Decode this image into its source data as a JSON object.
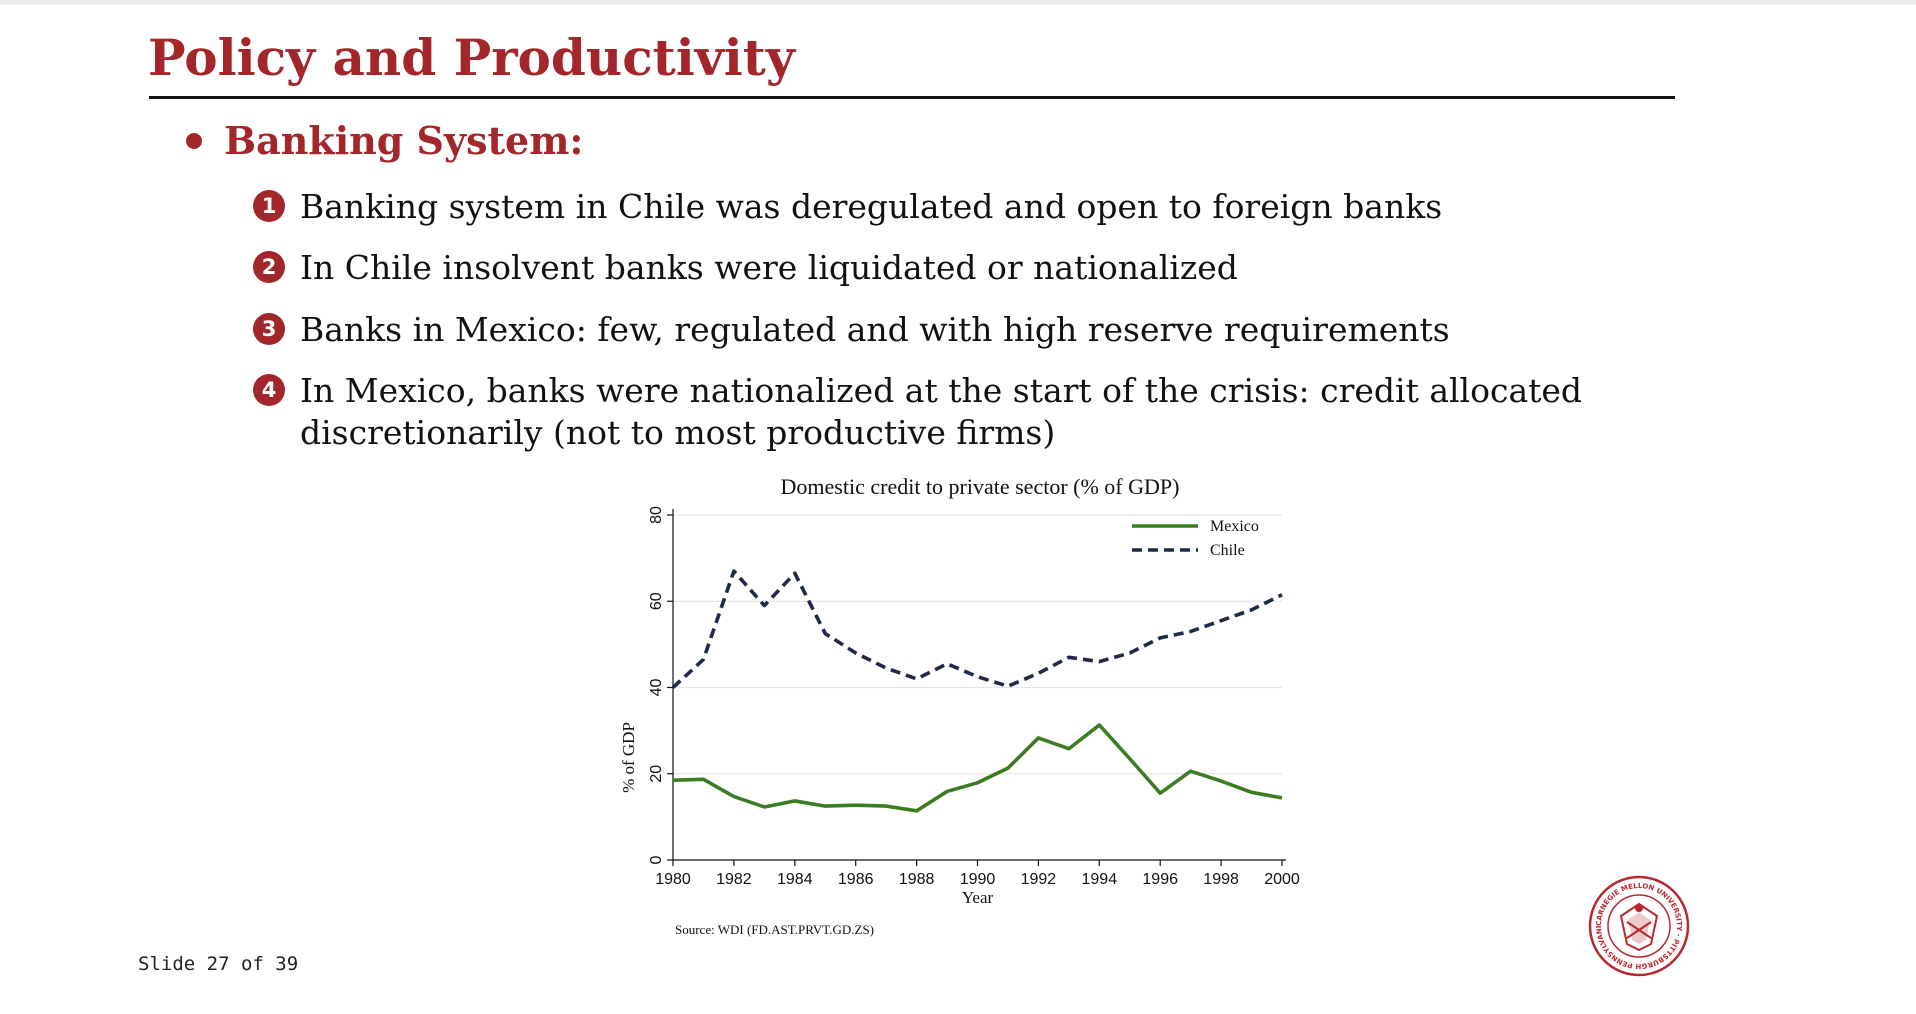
{
  "slide": {
    "title": "Policy and Productivity",
    "bullet_heading": "Banking System:",
    "items": [
      {
        "num": "1",
        "text": "Banking system in Chile was deregulated and open to foreign banks"
      },
      {
        "num": "2",
        "text": "In Chile insolvent banks were liquidated or nationalized"
      },
      {
        "num": "3",
        "text": "Banks in Mexico: few, regulated and with high reserve requirements"
      },
      {
        "num": "4",
        "text": "In Mexico, banks were nationalized at the start of the crisis: credit allocated discretionarily (not to most productive firms)"
      }
    ],
    "footer": "Slide 27 of 39",
    "accent_color": "#a3262a"
  },
  "seal": {
    "text": "CARNEGIE MELLON UNIVERSITY · PITTSBURGH PENNSYLVANIA 1900"
  },
  "chart_data": {
    "type": "line",
    "title": "Domestic credit to private sector (% of GDP)",
    "xlabel": "Year",
    "ylabel": "% of GDP",
    "source": "Source: WDI (FD.AST.PRVT.GD.ZS)",
    "xlim": [
      1980,
      2000
    ],
    "ylim": [
      0,
      80
    ],
    "x_ticks": [
      1980,
      1982,
      1984,
      1986,
      1988,
      1990,
      1992,
      1994,
      1996,
      1998,
      2000
    ],
    "y_ticks": [
      0,
      20,
      40,
      60,
      80
    ],
    "grid": "horizontal",
    "legend_position": "top-right",
    "x": [
      1980,
      1981,
      1982,
      1983,
      1984,
      1985,
      1986,
      1987,
      1988,
      1989,
      1990,
      1991,
      1992,
      1993,
      1994,
      1995,
      1996,
      1997,
      1998,
      1999,
      2000
    ],
    "series": [
      {
        "name": "Mexico",
        "color": "#3c7d22",
        "style": "solid",
        "values": [
          18.5,
          18.7,
          14.7,
          12.3,
          13.7,
          12.5,
          12.7,
          12.5,
          11.4,
          15.9,
          17.9,
          21.3,
          28.3,
          25.8,
          31.3,
          23.5,
          15.5,
          20.6,
          18.3,
          15.7,
          14.4
        ]
      },
      {
        "name": "Chile",
        "color": "#1f2a4a",
        "style": "dashed",
        "values": [
          40.0,
          46.5,
          67.0,
          59.0,
          66.5,
          52.5,
          48.0,
          44.5,
          42.0,
          45.5,
          42.5,
          40.3,
          43.3,
          47.0,
          46.0,
          48.0,
          51.5,
          53.0,
          55.5,
          58.0,
          61.5
        ]
      }
    ]
  }
}
